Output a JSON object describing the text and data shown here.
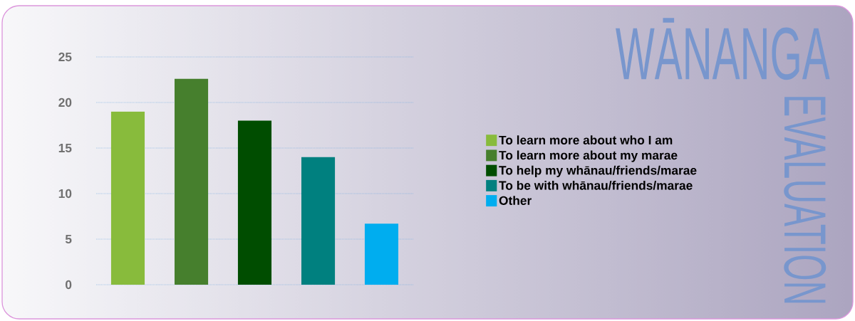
{
  "chart_data": {
    "type": "bar",
    "title": "WĀNANGA",
    "subtitle": "EVALUATION",
    "categories": [
      null,
      null,
      null,
      null,
      null
    ],
    "series": [
      {
        "name": "To learn more about who I am",
        "color": "#88bb3c",
        "values": [
          19,
          null,
          null,
          null,
          null
        ]
      },
      {
        "name": "To learn more about my marae",
        "color": "#467f2d",
        "values": [
          null,
          22.6,
          null,
          null,
          null
        ]
      },
      {
        "name": "To help my whānau/friends/marae",
        "color": "#004d00",
        "values": [
          null,
          null,
          18,
          null,
          null
        ]
      },
      {
        "name": "To be with whānau/friends/marae",
        "color": "#00807f",
        "values": [
          null,
          null,
          null,
          14,
          null
        ]
      },
      {
        "name": "Other",
        "color": "#00adef",
        "values": [
          null,
          null,
          null,
          null,
          6.7
        ]
      }
    ],
    "ylim": [
      0,
      25
    ],
    "yticks": [
      0,
      5,
      10,
      15,
      20,
      25
    ],
    "grid": "y",
    "legend": "right",
    "tick_labels": "y"
  }
}
